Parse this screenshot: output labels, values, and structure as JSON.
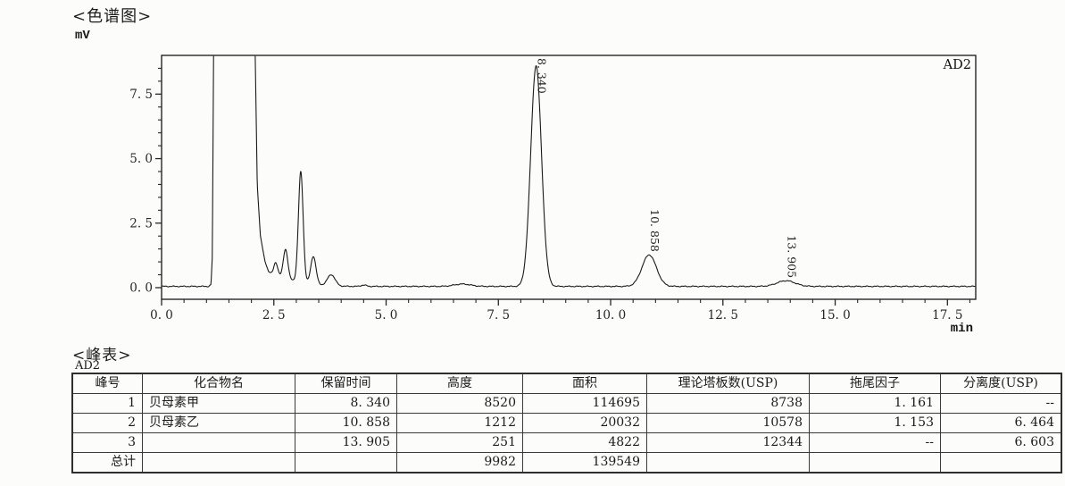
{
  "report": {
    "chart_section_title": "<色谱图>",
    "table_section_title": "<峰表>",
    "detector_label": "AD2"
  },
  "chart_data": {
    "type": "line",
    "title": "<色谱图>",
    "detector": "AD2",
    "y_unit": "mV",
    "x_unit": "min",
    "x_range": [
      0,
      18.13
    ],
    "y_range": [
      -0.45,
      9.0
    ],
    "x_major_ticks": [
      0,
      2.5,
      5,
      7.5,
      10,
      12.5,
      15,
      17.5
    ],
    "x_tick_labels": [
      "0. 0",
      "2. 5",
      "5. 0",
      "7. 5",
      "10. 0",
      "12. 5",
      "15. 0",
      "17. 5"
    ],
    "x_minor_step": 0.5,
    "y_major_ticks": [
      0,
      2.5,
      5,
      7.5
    ],
    "y_tick_labels": [
      "0. 0",
      "2. 5",
      "5. 0",
      "7. 5"
    ],
    "y_minor_step": 0.5,
    "grid": false,
    "legend": "none",
    "baseline_mv": 0.05,
    "labeled_peaks": [
      {
        "time": 8.34,
        "label": "8. 340",
        "amp_mv": 8.55,
        "sigma": 0.12
      },
      {
        "time": 10.858,
        "label": "10. 858",
        "amp_mv": 1.22,
        "sigma": 0.16
      },
      {
        "time": 13.905,
        "label": "13. 905",
        "amp_mv": 0.22,
        "sigma": 0.2
      }
    ],
    "unlabeled_peaks": [
      {
        "time": 2.54,
        "amp_mv": 0.52,
        "sigma": 0.045
      },
      {
        "time": 2.76,
        "amp_mv": 1.12,
        "sigma": 0.05
      },
      {
        "time": 3.1,
        "amp_mv": 4.28,
        "sigma": 0.052
      },
      {
        "time": 3.38,
        "amp_mv": 1.08,
        "sigma": 0.058
      },
      {
        "time": 3.78,
        "amp_mv": 0.43,
        "sigma": 0.085
      },
      {
        "time": 4.5,
        "amp_mv": 0.05,
        "sigma": 0.06
      },
      {
        "time": 6.7,
        "amp_mv": 0.09,
        "sigma": 0.18
      }
    ],
    "solvent_front_points": [
      [
        0,
        0.05
      ],
      [
        1.05,
        0.05
      ],
      [
        1.1,
        0.12
      ],
      [
        1.13,
        1.2
      ],
      [
        1.16,
        9.6
      ],
      [
        2.08,
        9.6
      ],
      [
        2.13,
        4.0
      ],
      [
        2.2,
        2.0
      ],
      [
        2.3,
        1.05
      ],
      [
        2.38,
        0.62
      ],
      [
        2.48,
        0.48
      ],
      [
        2.65,
        0.42
      ],
      [
        2.9,
        0.3
      ],
      [
        3.2,
        0.18
      ],
      [
        3.55,
        0.1
      ],
      [
        3.9,
        0.06
      ],
      [
        4.3,
        0.05
      ],
      [
        18.13,
        0.05
      ]
    ]
  },
  "peak_table": {
    "title": "<峰表>",
    "detector": "AD2",
    "columns": [
      "峰号",
      "化合物名",
      "保留时间",
      "高度",
      "面积",
      "理论塔板数(USP)",
      "拖尾因子",
      "分离度(USP)"
    ],
    "rows": [
      [
        "1",
        "贝母素甲",
        "8. 340",
        "8520",
        "114695",
        "8738",
        "1. 161",
        "--"
      ],
      [
        "2",
        "贝母素乙",
        "10. 858",
        "1212",
        "20032",
        "10578",
        "1. 153",
        "6. 464"
      ],
      [
        "3",
        "",
        "13. 905",
        "251",
        "4822",
        "12344",
        "--",
        "6. 603"
      ],
      [
        "总计",
        "",
        "",
        "9982",
        "139549",
        "",
        "",
        ""
      ]
    ]
  }
}
